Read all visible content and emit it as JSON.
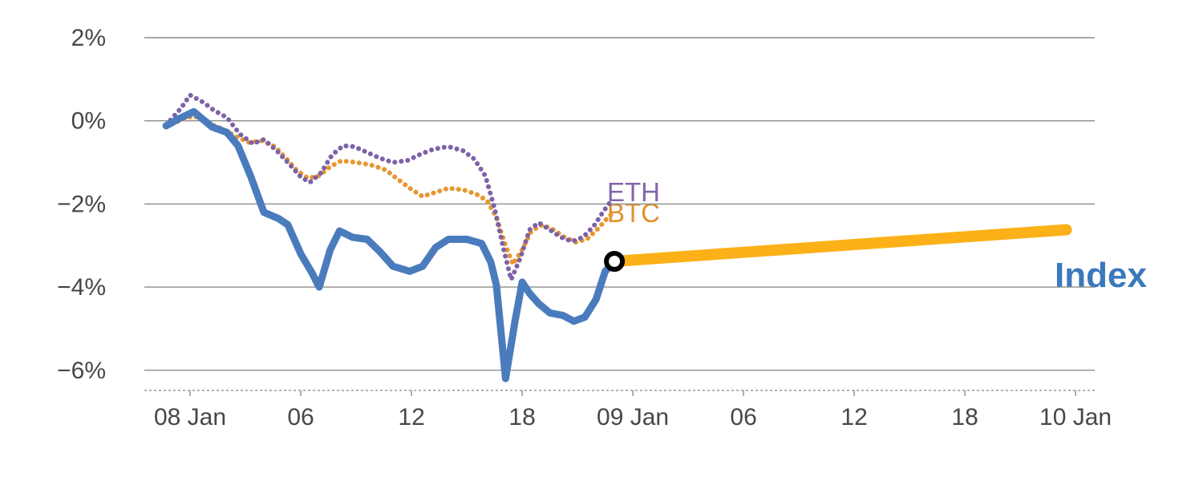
{
  "chart_data": {
    "type": "line",
    "x_unit": "hours since 08 Jan 00:00",
    "xlim": [
      -2.48,
      49.04
    ],
    "ylim": [
      -6.485,
      2
    ],
    "grid": "horizontal",
    "legend_position": "inline-labels",
    "colors": {
      "index": "#4a7cbd",
      "eth": "#7d62a8",
      "btc": "#e8962e",
      "forward": "#fbb117",
      "grid": "#8c8c8c",
      "axis": "#999999",
      "text": "#474747",
      "marker_stroke": "#000000",
      "marker_fill": "#ffffff"
    },
    "y_ticks": [
      {
        "value": 2,
        "label": "2%"
      },
      {
        "value": 0,
        "label": "0%"
      },
      {
        "value": -2,
        "label": "−2%"
      },
      {
        "value": -4,
        "label": "−4%"
      },
      {
        "value": -6,
        "label": "−6%"
      }
    ],
    "x_ticks": [
      {
        "value": 0,
        "label": "08 Jan"
      },
      {
        "value": 6,
        "label": "06"
      },
      {
        "value": 12,
        "label": "12"
      },
      {
        "value": 18,
        "label": "18"
      },
      {
        "value": 24,
        "label": "09 Jan"
      },
      {
        "value": 30,
        "label": "06"
      },
      {
        "value": 36,
        "label": "12"
      },
      {
        "value": 42,
        "label": "18"
      },
      {
        "value": 48,
        "label": "10 Jan"
      }
    ],
    "series": [
      {
        "name": "BTC",
        "color": "#e8962e",
        "style": "dotted",
        "width": 6,
        "points": [
          [
            -1.3,
            -0.15
          ],
          [
            -0.5,
            0.02
          ],
          [
            0.2,
            0.12
          ],
          [
            1.0,
            -0.06
          ],
          [
            1.8,
            -0.2
          ],
          [
            2.5,
            -0.38
          ],
          [
            3.2,
            -0.52
          ],
          [
            3.9,
            -0.48
          ],
          [
            4.6,
            -0.62
          ],
          [
            5.2,
            -0.9
          ],
          [
            5.8,
            -1.2
          ],
          [
            6.4,
            -1.38
          ],
          [
            7.0,
            -1.32
          ],
          [
            7.6,
            -1.1
          ],
          [
            8.2,
            -0.96
          ],
          [
            9.0,
            -1.0
          ],
          [
            9.8,
            -1.06
          ],
          [
            10.6,
            -1.18
          ],
          [
            11.3,
            -1.42
          ],
          [
            12.0,
            -1.65
          ],
          [
            12.6,
            -1.82
          ],
          [
            13.3,
            -1.72
          ],
          [
            14.0,
            -1.62
          ],
          [
            14.8,
            -1.66
          ],
          [
            15.5,
            -1.76
          ],
          [
            16.1,
            -1.92
          ],
          [
            16.6,
            -2.32
          ],
          [
            17.1,
            -3.0
          ],
          [
            17.5,
            -3.45
          ],
          [
            18.0,
            -3.1
          ],
          [
            18.5,
            -2.65
          ],
          [
            19.1,
            -2.5
          ],
          [
            19.7,
            -2.62
          ],
          [
            20.3,
            -2.8
          ],
          [
            20.9,
            -2.92
          ],
          [
            21.5,
            -2.85
          ],
          [
            22.1,
            -2.6
          ],
          [
            22.6,
            -2.35
          ],
          [
            23.0,
            -2.18
          ]
        ]
      },
      {
        "name": "ETH",
        "color": "#7d62a8",
        "style": "dotted",
        "width": 6,
        "points": [
          [
            -1.3,
            -0.1
          ],
          [
            -0.5,
            0.3
          ],
          [
            0.0,
            0.62
          ],
          [
            0.7,
            0.45
          ],
          [
            1.3,
            0.25
          ],
          [
            2.0,
            0.08
          ],
          [
            2.7,
            -0.32
          ],
          [
            3.4,
            -0.55
          ],
          [
            4.0,
            -0.45
          ],
          [
            4.7,
            -0.72
          ],
          [
            5.4,
            -1.05
          ],
          [
            6.0,
            -1.35
          ],
          [
            6.5,
            -1.48
          ],
          [
            7.1,
            -1.25
          ],
          [
            7.7,
            -0.82
          ],
          [
            8.3,
            -0.6
          ],
          [
            8.9,
            -0.62
          ],
          [
            9.6,
            -0.76
          ],
          [
            10.3,
            -0.9
          ],
          [
            11.0,
            -1.0
          ],
          [
            11.8,
            -0.95
          ],
          [
            12.5,
            -0.8
          ],
          [
            13.2,
            -0.68
          ],
          [
            14.0,
            -0.62
          ],
          [
            14.8,
            -0.72
          ],
          [
            15.4,
            -0.92
          ],
          [
            16.0,
            -1.32
          ],
          [
            16.5,
            -2.1
          ],
          [
            17.0,
            -3.1
          ],
          [
            17.4,
            -3.82
          ],
          [
            17.9,
            -3.3
          ],
          [
            18.4,
            -2.62
          ],
          [
            18.9,
            -2.45
          ],
          [
            19.5,
            -2.62
          ],
          [
            20.1,
            -2.8
          ],
          [
            20.7,
            -2.9
          ],
          [
            21.3,
            -2.8
          ],
          [
            21.9,
            -2.52
          ],
          [
            22.4,
            -2.18
          ],
          [
            22.9,
            -1.88
          ]
        ]
      },
      {
        "name": "Index",
        "color": "#4a7cbd",
        "style": "solid",
        "width": 9,
        "points": [
          [
            -1.3,
            -0.12
          ],
          [
            -0.6,
            0.05
          ],
          [
            0.2,
            0.22
          ],
          [
            1.2,
            -0.15
          ],
          [
            2.0,
            -0.28
          ],
          [
            2.6,
            -0.6
          ],
          [
            3.3,
            -1.35
          ],
          [
            4.0,
            -2.2
          ],
          [
            4.8,
            -2.35
          ],
          [
            5.3,
            -2.5
          ],
          [
            6.0,
            -3.2
          ],
          [
            6.6,
            -3.65
          ],
          [
            7.0,
            -4.0
          ],
          [
            7.6,
            -3.1
          ],
          [
            8.1,
            -2.65
          ],
          [
            8.8,
            -2.8
          ],
          [
            9.6,
            -2.85
          ],
          [
            10.3,
            -3.15
          ],
          [
            11.0,
            -3.5
          ],
          [
            11.9,
            -3.62
          ],
          [
            12.6,
            -3.5
          ],
          [
            13.3,
            -3.05
          ],
          [
            14.0,
            -2.85
          ],
          [
            15.0,
            -2.85
          ],
          [
            15.8,
            -2.95
          ],
          [
            16.3,
            -3.4
          ],
          [
            16.6,
            -3.95
          ],
          [
            17.1,
            -6.2
          ],
          [
            17.6,
            -4.85
          ],
          [
            18.0,
            -3.88
          ],
          [
            18.4,
            -4.15
          ],
          [
            18.9,
            -4.4
          ],
          [
            19.5,
            -4.62
          ],
          [
            20.2,
            -4.68
          ],
          [
            20.8,
            -4.82
          ],
          [
            21.4,
            -4.72
          ],
          [
            22.0,
            -4.3
          ],
          [
            22.5,
            -3.62
          ],
          [
            23.0,
            -3.38
          ]
        ]
      },
      {
        "name": "Index forward",
        "color": "#fbb117",
        "style": "solid",
        "width": 14,
        "points": [
          [
            23.0,
            -3.38
          ],
          [
            47.5,
            -2.62
          ]
        ]
      }
    ],
    "marker": {
      "x": 23.0,
      "y": -3.38
    },
    "labels": {
      "eth": "ETH",
      "btc": "BTC",
      "index": "Index"
    }
  }
}
